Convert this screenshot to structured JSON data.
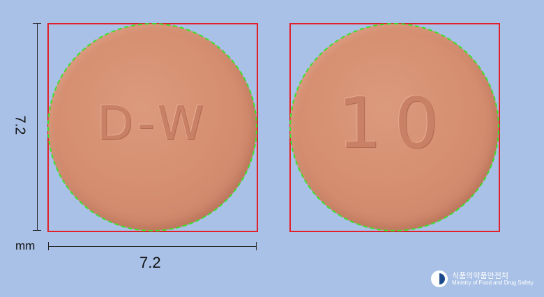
{
  "pill": {
    "front_imprint": "D-W",
    "back_imprint": "10",
    "color": "#d48d6f"
  },
  "dimensions": {
    "height": "7.2",
    "width": "7.2",
    "unit": "mm"
  },
  "watermark": {
    "korean_name": "식품의약품안전처",
    "english_name": "Ministry of Food and Drug Safety"
  },
  "colors": {
    "background": "#a9c1e6",
    "bounding_box": "#e0202a",
    "contour": "#3ee02c"
  }
}
